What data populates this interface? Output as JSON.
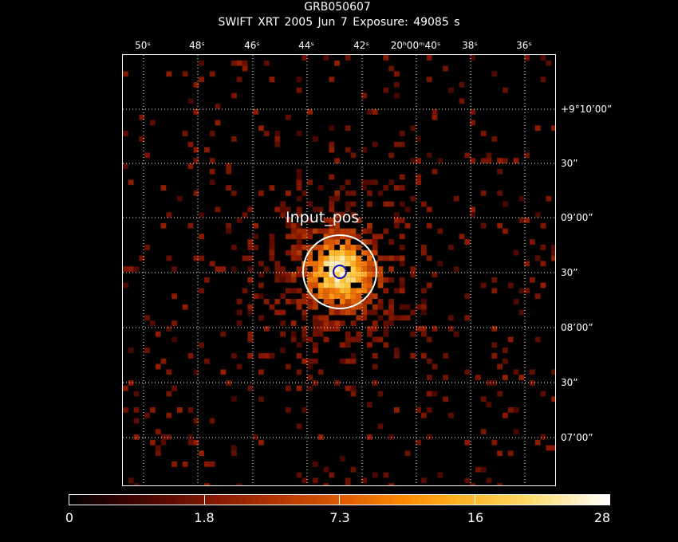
{
  "title": "GRB050607",
  "subtitle": "SWIFT XRT   2005 Jun  7    Exposure: 49085 s",
  "ra_ticks": [
    "50ˢ",
    "48ˢ",
    "46ˢ",
    "44ˢ",
    "42ˢ",
    "20ʰ00ᵐ40ˢ",
    "38ˢ",
    "36ˢ"
  ],
  "dec_ticks": [
    "+9°10’00”",
    "30”",
    "09’00”",
    "30”",
    "08’00”",
    "30”",
    "07’00”"
  ],
  "source_label": "Input_pos",
  "colorbar": {
    "labels": [
      "0",
      "1.8",
      "7.3",
      "16",
      "28"
    ],
    "values": [
      0,
      1.8,
      7.3,
      16,
      28
    ]
  },
  "colors": {
    "background": "#000000",
    "grid": "#ffffff",
    "circle": "#ffffff",
    "marker": "#1010c0"
  }
}
